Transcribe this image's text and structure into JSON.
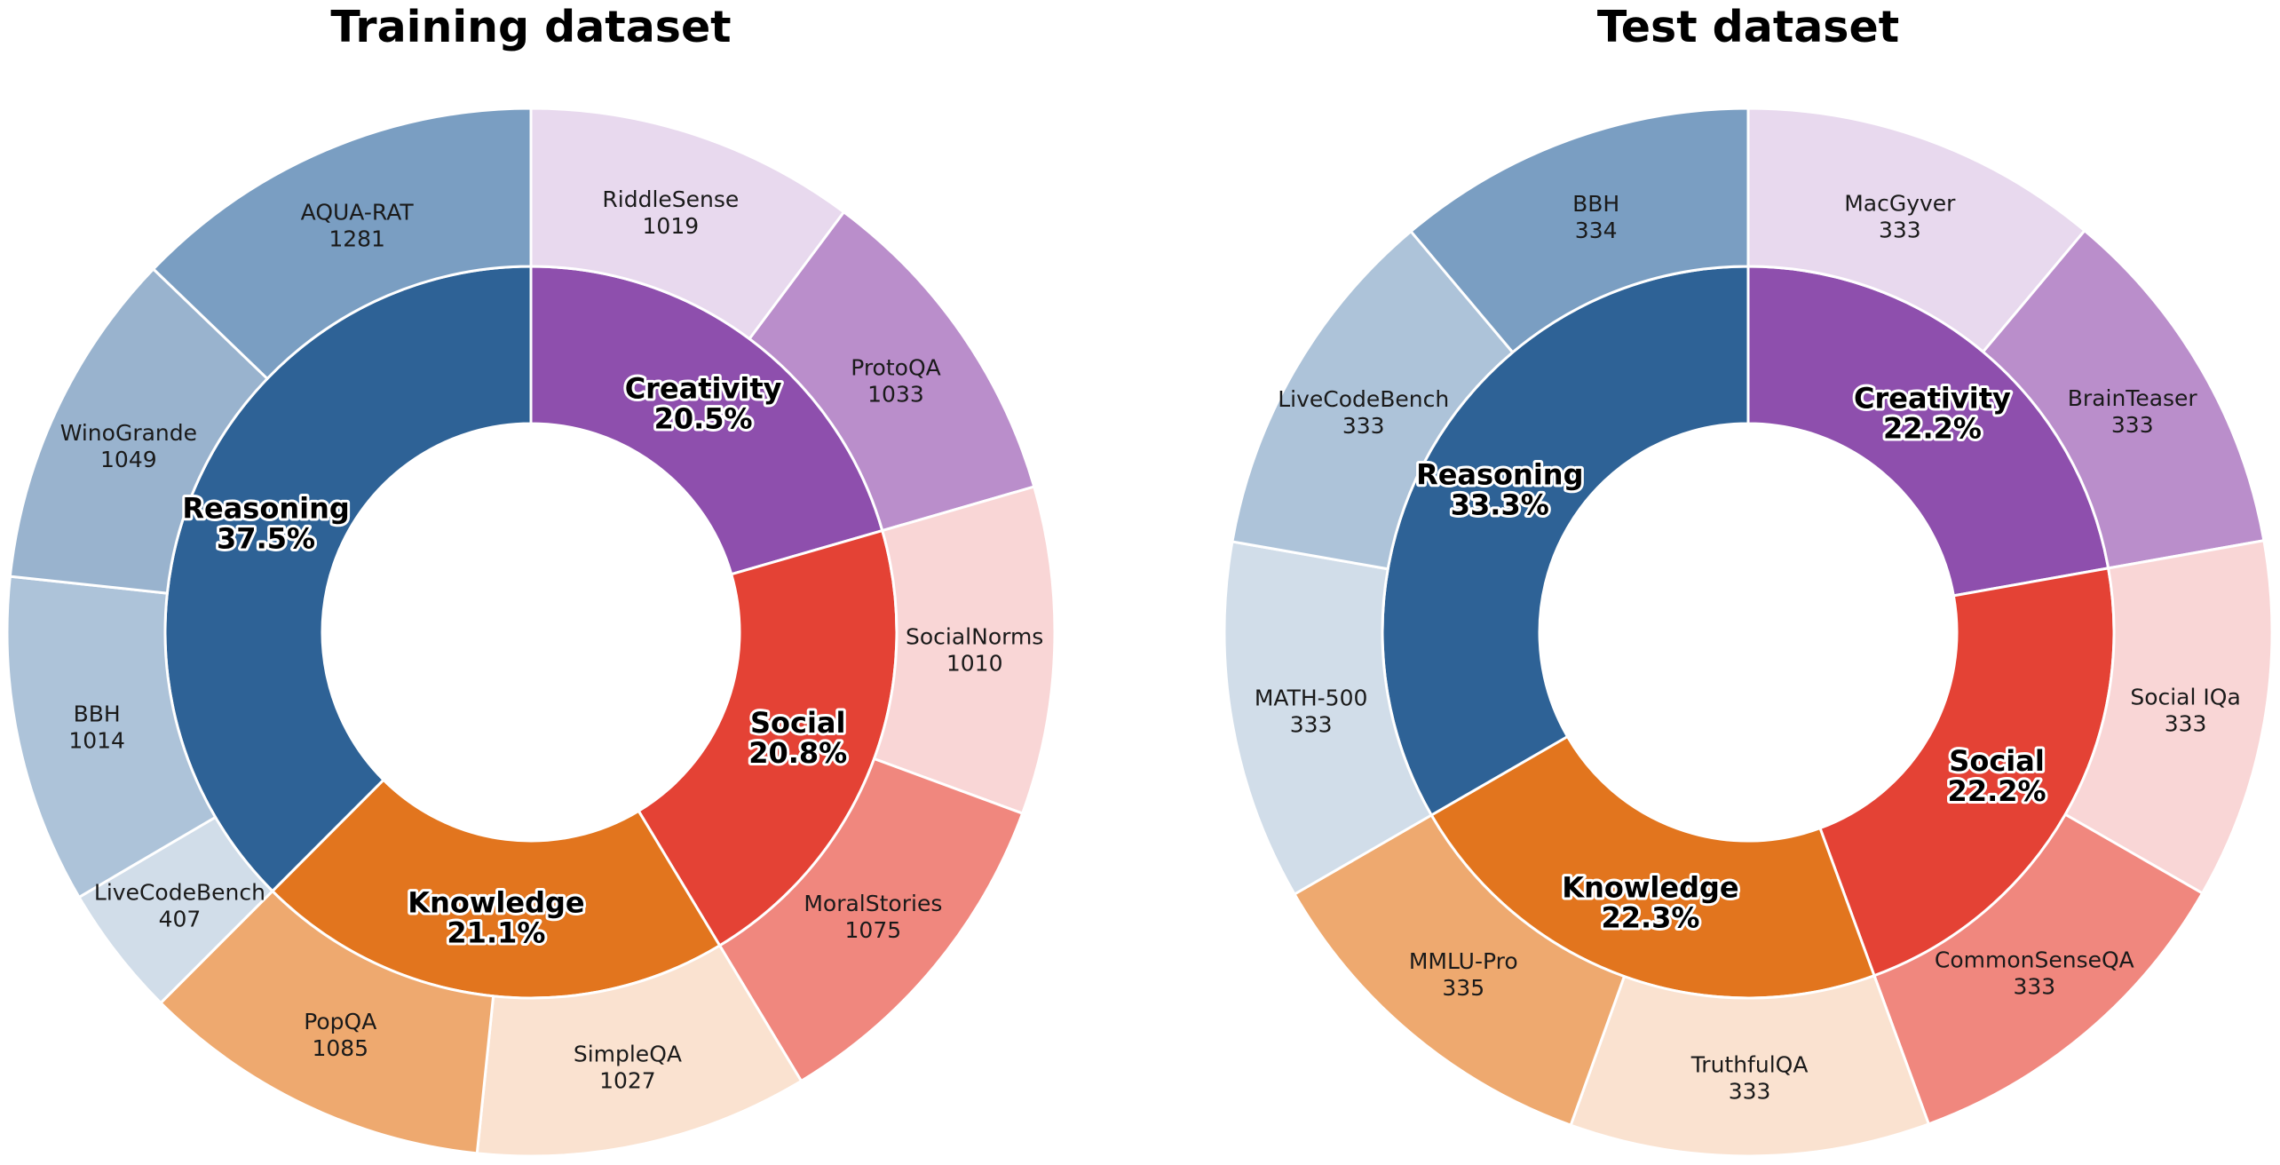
{
  "chart_data": [
    {
      "type": "pie",
      "subtype": "nested-donut",
      "title": "Training dataset",
      "categories": [
        {
          "name": "Creativity",
          "percent": "20.5%",
          "color": "#8e4fad",
          "value": 2052,
          "subsets": [
            {
              "name": "RiddleSense",
              "value": 1019,
              "color": "#e8d9ee"
            },
            {
              "name": "ProtoQA",
              "value": 1033,
              "color": "#ba8ecb"
            }
          ]
        },
        {
          "name": "Social",
          "percent": "20.8%",
          "color": "#e44235",
          "value": 2085,
          "subsets": [
            {
              "name": "SocialNorms",
              "value": 1010,
              "color": "#f9d6d6"
            },
            {
              "name": "MoralStories",
              "value": 1075,
              "color": "#f0877e"
            }
          ]
        },
        {
          "name": "Knowledge",
          "percent": "21.1%",
          "color": "#e2751e",
          "value": 2112,
          "subsets": [
            {
              "name": "SimpleQA",
              "value": 1027,
              "color": "#fae2d0"
            },
            {
              "name": "PopQA",
              "value": 1085,
              "color": "#eea96f"
            }
          ]
        },
        {
          "name": "Reasoning",
          "percent": "37.5%",
          "color": "#2e6296",
          "value": 3751,
          "subsets": [
            {
              "name": "LiveCodeBench",
              "value": 407,
              "color": "#d1dde9"
            },
            {
              "name": "BBH",
              "value": 1014,
              "color": "#adc3d9"
            },
            {
              "name": "WinoGrande",
              "value": 1049,
              "color": "#99b3ce"
            },
            {
              "name": "AQUA-RAT",
              "value": 1281,
              "color": "#7a9ec2"
            }
          ]
        }
      ]
    },
    {
      "type": "pie",
      "subtype": "nested-donut",
      "title": "Test dataset",
      "categories": [
        {
          "name": "Creativity",
          "percent": "22.2%",
          "color": "#8e4fad",
          "value": 666,
          "subsets": [
            {
              "name": "MacGyver",
              "value": 333,
              "color": "#e8d9ee"
            },
            {
              "name": "BrainTeaser",
              "value": 333,
              "color": "#ba8ecb"
            }
          ]
        },
        {
          "name": "Social",
          "percent": "22.2%",
          "color": "#e44235",
          "value": 666,
          "subsets": [
            {
              "name": "Social IQa",
              "value": 333,
              "color": "#f9d6d6"
            },
            {
              "name": "CommonSenseQA",
              "value": 333,
              "color": "#f0877e"
            }
          ]
        },
        {
          "name": "Knowledge",
          "percent": "22.3%",
          "color": "#e2751e",
          "value": 668,
          "subsets": [
            {
              "name": "TruthfulQA",
              "value": 333,
              "color": "#fae2d0"
            },
            {
              "name": "MMLU-Pro",
              "value": 335,
              "color": "#eea96f"
            }
          ]
        },
        {
          "name": "Reasoning",
          "percent": "33.3%",
          "color": "#2e6296",
          "value": 1000,
          "subsets": [
            {
              "name": "MATH-500",
              "value": 333,
              "color": "#d1dde9"
            },
            {
              "name": "LiveCodeBench",
              "value": 333,
              "color": "#adc3d9"
            },
            {
              "name": "BBH",
              "value": 334,
              "color": "#7a9ec2"
            }
          ]
        }
      ]
    }
  ]
}
